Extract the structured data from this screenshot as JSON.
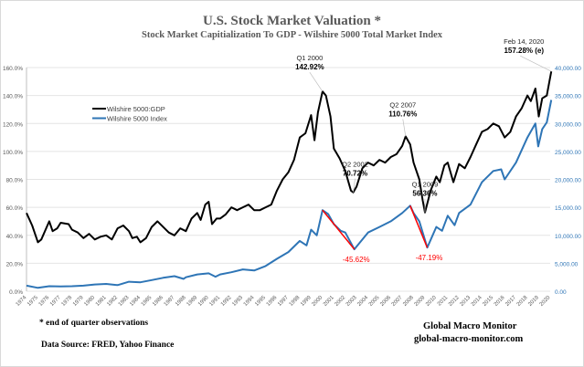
{
  "chart_data": {
    "type": "line",
    "title": "U.S. Stock Market Valuation *",
    "subtitle": "Stock Market Capitialization To GDP -   Wilshire 5000 Total Market Index",
    "x_ticks": [
      "1974",
      "1975",
      "1976",
      "1977",
      "1978",
      "1979",
      "1980",
      "1981",
      "1982",
      "1983",
      "1984",
      "1985",
      "1986",
      "1987",
      "1988",
      "1989",
      "1990",
      "1991",
      "1992",
      "1993",
      "1994",
      "1995",
      "1996",
      "1997",
      "1998",
      "1999",
      "2000",
      "2001",
      "2002",
      "2003",
      "2004",
      "2005",
      "2006",
      "2007",
      "2008",
      "2009",
      "2010",
      "2011",
      "2012",
      "2013",
      "2014",
      "2015",
      "2016",
      "2017",
      "2018",
      "2019",
      "2020"
    ],
    "xlim": [
      1974,
      2020
    ],
    "y_left": {
      "range": [
        0,
        160
      ],
      "ticks": [
        "0.0%",
        "20.0%",
        "40.0%",
        "60.0%",
        "80.0%",
        "100.0%",
        "120.0%",
        "140.0%",
        "160.0%"
      ]
    },
    "y_right": {
      "range": [
        0,
        40000
      ],
      "ticks": [
        "0.00",
        "5,000.00",
        "10,000.00",
        "15,000.00",
        "20,000.00",
        "25,000.00",
        "30,000.00",
        "35,000.00",
        "40,000.00"
      ],
      "color": "#2e75b6"
    },
    "grid": true,
    "legend_placement": "top-left",
    "series": [
      {
        "name": "Wilshire 5000:GDP",
        "axis": "left",
        "color": "#000000",
        "x": [
          1974,
          1974.5,
          1975,
          1975.3,
          1976,
          1976.3,
          1976.7,
          1977,
          1977.7,
          1978,
          1978.5,
          1979,
          1979.5,
          1980,
          1980.5,
          1981,
          1981.5,
          1982,
          1982.5,
          1983,
          1983.3,
          1983.7,
          1984,
          1984.5,
          1985,
          1985.5,
          1986,
          1986.5,
          1987,
          1987.5,
          1988,
          1988.5,
          1989,
          1989.3,
          1989.7,
          1990,
          1990.3,
          1990.7,
          1991,
          1991.5,
          1992,
          1992.5,
          1993,
          1993.5,
          1994,
          1994.5,
          1995,
          1995.5,
          1996,
          1996.5,
          1997,
          1997.5,
          1998,
          1998.5,
          1999,
          1999.3,
          1999.6,
          2000,
          2000.3,
          2000.7,
          2001,
          2001.5,
          2002,
          2002.5,
          2002.7,
          2003,
          2003.5,
          2004,
          2004.5,
          2005,
          2005.5,
          2006,
          2006.5,
          2007,
          2007.3,
          2007.7,
          2008,
          2008.5,
          2008.8,
          2009,
          2009.5,
          2010,
          2010.3,
          2010.7,
          2011,
          2011.5,
          2012,
          2012.5,
          2013,
          2013.5,
          2014,
          2014.5,
          2015,
          2015.5,
          2016,
          2016.5,
          2017,
          2017.5,
          2018,
          2018.3,
          2018.7,
          2019,
          2019.3,
          2019.7,
          2020.1
        ],
        "values": [
          56,
          47,
          35,
          37,
          50,
          43,
          45,
          49,
          48,
          44,
          42,
          38,
          41,
          37,
          39,
          40,
          37,
          45,
          47,
          43,
          38,
          39,
          35,
          38,
          46,
          50,
          46,
          42,
          40,
          45,
          43,
          52,
          56,
          51,
          62,
          64,
          48,
          52,
          52,
          55,
          60,
          58,
          60,
          62,
          58,
          58,
          60,
          62,
          72,
          80,
          85,
          94,
          110,
          113,
          126,
          108,
          128,
          142.92,
          140,
          125,
          102,
          95,
          86,
          72,
          70.72,
          75,
          88,
          92,
          90,
          94,
          92,
          96,
          98,
          104,
          110.76,
          105,
          92,
          80,
          65,
          56.36,
          72,
          82,
          78,
          90,
          92,
          78,
          91,
          88,
          96,
          105,
          114,
          116,
          120,
          118,
          110,
          114,
          125,
          131,
          140,
          136,
          145,
          125,
          138,
          140,
          157.28
        ]
      },
      {
        "name": "Wilshire 5000 Index",
        "axis": "right",
        "color": "#2e75b6",
        "x": [
          1974,
          1975,
          1976,
          1977,
          1978,
          1979,
          1980,
          1981,
          1982,
          1983,
          1984,
          1985,
          1986,
          1987,
          1987.8,
          1988,
          1989,
          1990,
          1990.6,
          1991,
          1992,
          1993,
          1994,
          1995,
          1996,
          1997,
          1998,
          1998.6,
          1999,
          1999.5,
          2000,
          2000.5,
          2001,
          2001.6,
          2002,
          2002.8,
          2003,
          2004,
          2005,
          2006,
          2007,
          2007.7,
          2008,
          2008.5,
          2009.2,
          2010,
          2010.5,
          2011,
          2011.6,
          2012,
          2013,
          2014,
          2014.5,
          2015,
          2015.7,
          2016,
          2017,
          2018,
          2018.7,
          2018.95,
          2019.3,
          2019.7,
          2020.1
        ],
        "values": [
          1000,
          600,
          900,
          850,
          900,
          1000,
          1200,
          1300,
          1100,
          1700,
          1600,
          2000,
          2400,
          2700,
          2200,
          2500,
          3000,
          3200,
          2600,
          3000,
          3400,
          3900,
          3700,
          4500,
          5800,
          7000,
          9000,
          8200,
          11000,
          10000,
          14500,
          13800,
          12000,
          10800,
          10500,
          7500,
          8000,
          10500,
          11500,
          12500,
          14000,
          15300,
          14000,
          12500,
          7800,
          11500,
          10800,
          13500,
          11800,
          14000,
          15500,
          19500,
          20500,
          21500,
          21800,
          20000,
          23000,
          27500,
          30000,
          25900,
          29000,
          30200,
          34200
        ]
      }
    ],
    "annotations": [
      {
        "period": "Q1 2000",
        "value": "142.92%",
        "x": 2000,
        "y": 142.92
      },
      {
        "period": "Q2 2002",
        "value": "70.72%",
        "x": 2002.7,
        "y": 70.72
      },
      {
        "period": "Q2 2007",
        "value": "110.76%",
        "x": 2007.3,
        "y": 110.76
      },
      {
        "period": "Q1 2009",
        "value": "56.36%",
        "x": 2009,
        "y": 56.36
      },
      {
        "period": "Feb 14, 2020",
        "value": "157.28% (e)",
        "x": 2020.1,
        "y": 157.28
      }
    ],
    "drawdowns": [
      {
        "label": "-45.62%",
        "from": [
          2000,
          14500
        ],
        "to": [
          2002.8,
          7500
        ],
        "color": "#ff0000"
      },
      {
        "label": "-47.19%",
        "from": [
          2007.7,
          15300
        ],
        "to": [
          2009.2,
          7800
        ],
        "color": "#ff0000"
      }
    ]
  },
  "footer": {
    "note": "*   end of quarter  observations",
    "source": "Data Source:  FRED, Yahoo  Finance",
    "brand": "Global Macro Monitor",
    "site": "global-macro-monitor.com"
  }
}
